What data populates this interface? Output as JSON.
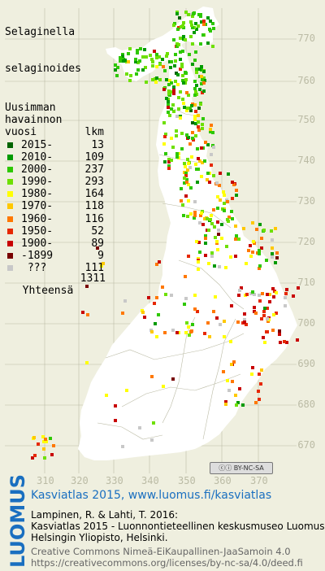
{
  "species": [
    "Selaginella",
    "selaginoides"
  ],
  "legend": {
    "title_lines": [
      "Uusimman",
      "havainnon"
    ],
    "year_header": "vuosi",
    "count_header": "lkm",
    "rows": [
      {
        "label": "2015-",
        "count": "13",
        "color": "#006400"
      },
      {
        "label": "2010-",
        "count": "109",
        "color": "#009a00"
      },
      {
        "label": "2000-",
        "count": "237",
        "color": "#2ec800"
      },
      {
        "label": "1990-",
        "count": "293",
        "color": "#6ee000"
      },
      {
        "label": "1980-",
        "count": "164",
        "color": "#ffff00"
      },
      {
        "label": "1970-",
        "count": "118",
        "color": "#ffc800"
      },
      {
        "label": "1960-",
        "count": "116",
        "color": "#ff7800"
      },
      {
        "label": "1950-",
        "count": "52",
        "color": "#e62800"
      },
      {
        "label": "1900-",
        "count": "89",
        "color": "#c80000"
      },
      {
        "label": "-1899",
        "count": "9",
        "color": "#780000"
      },
      {
        "label": " ???",
        "count": "111",
        "color": "#c8c8c8"
      }
    ],
    "total_label": "Yhteensä",
    "total_count": "1311"
  },
  "axes": {
    "y_ticks": [
      "770",
      "760",
      "750",
      "740",
      "730",
      "720",
      "710",
      "700",
      "690",
      "680",
      "670"
    ],
    "x_ticks": [
      "310",
      "320",
      "330",
      "340",
      "350",
      "360",
      "370"
    ]
  },
  "license_badge": "BY-NC-SA",
  "brand": "LUOMUS",
  "footer": {
    "title": "Kasviatlas 2015, www.luomus.fi/kasviatlas",
    "citation": [
      "Lampinen, R. & Lahti, T. 2016:",
      "Kasviatlas 2015 - Luonnontieteellinen keskusmuseo Luomus,",
      "Helsingin Yliopisto, Helsinki."
    ],
    "license": [
      "Creative Commons Nimeä-EiKaupallinen-JaaSamoin 4.0",
      "https://creativecommons.org/licenses/by-nc-sa/4.0/deed.fi"
    ]
  },
  "colors": {
    "background": "#efefdf",
    "land": "#ffffff",
    "grid": "#bbbba5",
    "brand": "#1a6fc0"
  },
  "map_data": {
    "grid_unit_km": 10,
    "x_range": [
      305,
      377
    ],
    "y_range": [
      665,
      778
    ],
    "occurrence_clusters": [
      {
        "region": "northern Lapland",
        "period": "1990-"
      },
      {
        "region": "Kuusamo",
        "period": "2010-"
      },
      {
        "region": "eastern border",
        "period": "1980-"
      },
      {
        "region": "Kaakkois-Suomi",
        "period": "1900-"
      }
    ]
  }
}
